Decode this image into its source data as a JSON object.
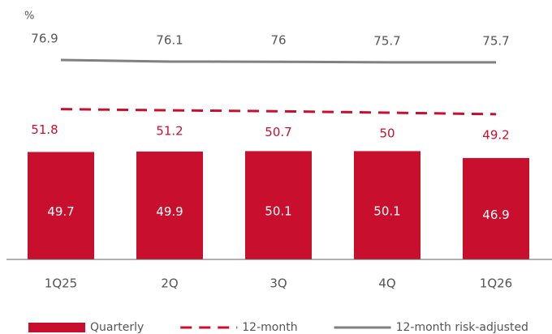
{
  "chart_data": {
    "type": "bar",
    "y_label": "%",
    "categories": [
      "1Q25",
      "2Q",
      "3Q",
      "4Q",
      "1Q26"
    ],
    "ylim": [
      0,
      105
    ],
    "y2lim": [
      -25,
      91
    ],
    "series": [
      {
        "name": "Quarterly",
        "type": "bar",
        "color": "#c8102e",
        "values": [
          49.7,
          49.9,
          50.1,
          50.1,
          46.9
        ]
      },
      {
        "name": "12-month",
        "type": "line",
        "axis": "y2",
        "dashed": true,
        "color": "#c8102e",
        "values": [
          51.8,
          51.2,
          50.7,
          50.0,
          49.2
        ]
      },
      {
        "name": "12-month risk-adjusted",
        "type": "line",
        "axis": "y2",
        "dashed": false,
        "color": "#808080",
        "values": [
          76.9,
          76.1,
          76.0,
          75.7,
          75.7
        ]
      }
    ]
  }
}
